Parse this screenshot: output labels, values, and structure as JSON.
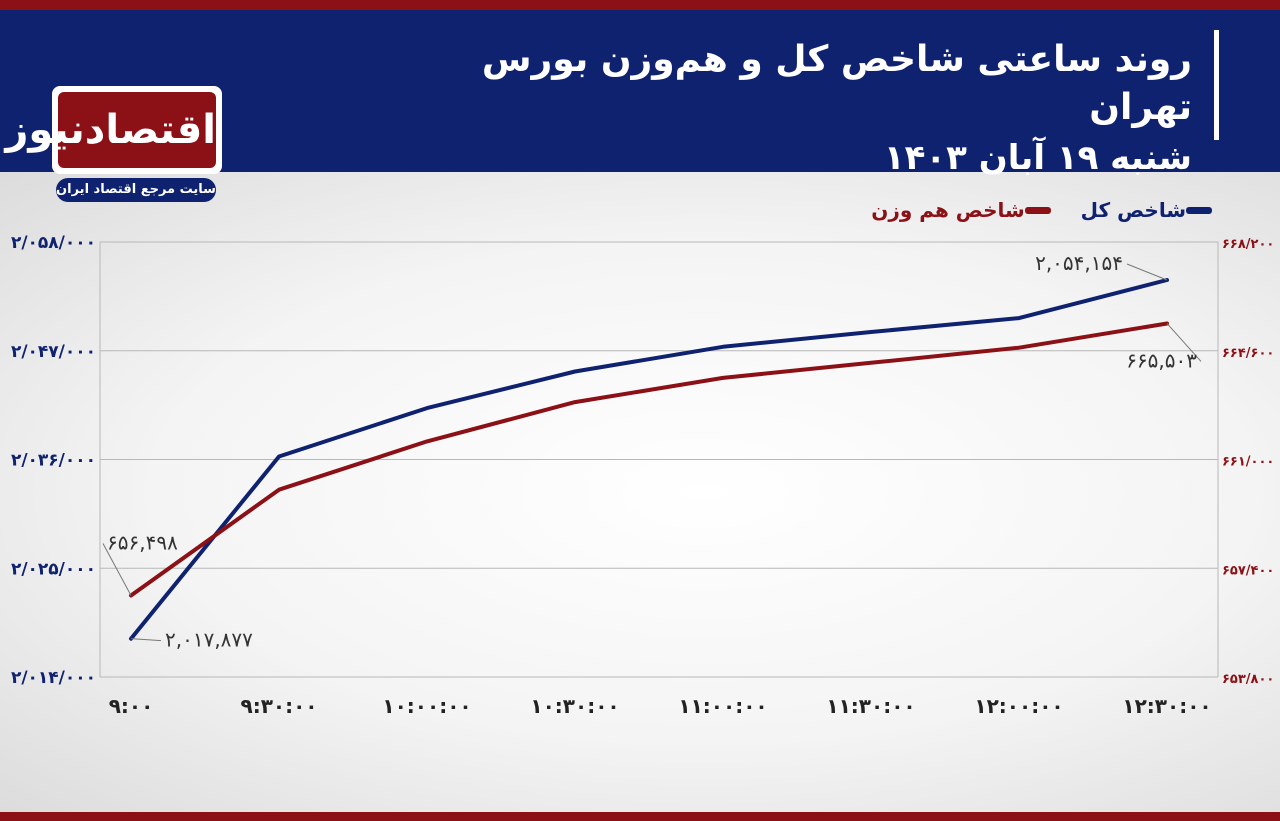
{
  "header": {
    "title": "روند ساعتی شاخص کل و هم‌وزن بورس تهران",
    "subtitle": "شنبه ۱۹ آبان ۱۴۰۳"
  },
  "logo": {
    "name": "اقتصادنیوز",
    "tagline": "سایت مرجع اقتصاد ایران"
  },
  "colors": {
    "header_bg": "#0f2270",
    "accent_red": "#8b1116",
    "series_total": "#0f2270",
    "series_equal": "#8b1116"
  },
  "chart_data": {
    "type": "line",
    "categories": [
      "9:00",
      "9:30:00",
      "10:00:00",
      "10:30:00",
      "11:00:00",
      "11:30:00",
      "12:00:00",
      "12:30:00"
    ],
    "series": [
      {
        "name": "شاخص کل",
        "axis": "left",
        "values": [
          2017877,
          2036300,
          2041200,
          2044900,
          2047400,
          2048900,
          2050300,
          2054154
        ],
        "labels": [
          {
            "index": 0,
            "text": "۲,۰۱۷,۸۷۷"
          },
          {
            "index": 7,
            "text": "۲,۰۵۴,۱۵۴"
          }
        ]
      },
      {
        "name": "شاخص هم وزن",
        "axis": "right",
        "values": [
          656498,
          660000,
          661600,
          662900,
          663700,
          664200,
          664700,
          665503
        ],
        "labels": [
          {
            "index": 0,
            "text": "۶۵۶,۴۹۸"
          },
          {
            "index": 7,
            "text": "۶۶۵,۵۰۳"
          }
        ]
      }
    ],
    "left_axis": {
      "ylim": [
        2014000,
        2058000
      ],
      "ticks": [
        2014000,
        2025000,
        2036000,
        2047000,
        2058000
      ],
      "tick_labels": [
        "۲/۰۱۴/۰۰۰",
        "۲/۰۲۵/۰۰۰",
        "۲/۰۳۶/۰۰۰",
        "۲/۰۴۷/۰۰۰",
        "۲/۰۵۸/۰۰۰"
      ]
    },
    "right_axis": {
      "ylim": [
        653800,
        668200
      ],
      "ticks": [
        653800,
        657400,
        661000,
        664600,
        668200
      ],
      "tick_labels": [
        "۶۵۳/۸۰۰",
        "۶۵۷/۴۰۰",
        "۶۶۱/۰۰۰",
        "۶۶۴/۶۰۰",
        "۶۶۸/۲۰۰"
      ]
    },
    "x_tick_labels": [
      "۹:۰۰",
      "۹:۳۰:۰۰",
      "۱۰:۰۰:۰۰",
      "۱۰:۳۰:۰۰",
      "۱۱:۰۰:۰۰",
      "۱۱:۳۰:۰۰",
      "۱۲:۰۰:۰۰",
      "۱۲:۳۰:۰۰"
    ],
    "grid": true,
    "legend_position": "top-right"
  }
}
